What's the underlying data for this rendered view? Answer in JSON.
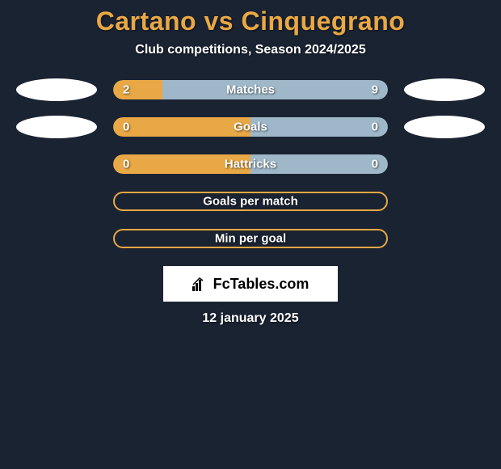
{
  "title": "Cartano vs Cinquegrano",
  "subtitle": "Club competitions, Season 2024/2025",
  "rows": [
    {
      "label": "Matches",
      "left_val": "2",
      "right_val": "9",
      "left_pct": 18,
      "right_pct": 82,
      "show_avatars": true,
      "empty": false
    },
    {
      "label": "Goals",
      "left_val": "0",
      "right_val": "0",
      "left_pct": 50,
      "right_pct": 50,
      "show_avatars": true,
      "empty": false
    },
    {
      "label": "Hattricks",
      "left_val": "0",
      "right_val": "0",
      "left_pct": 50,
      "right_pct": 50,
      "show_avatars": false,
      "empty": false
    },
    {
      "label": "Goals per match",
      "left_val": "",
      "right_val": "",
      "left_pct": 0,
      "right_pct": 0,
      "show_avatars": false,
      "empty": true
    },
    {
      "label": "Min per goal",
      "left_val": "",
      "right_val": "",
      "left_pct": 0,
      "right_pct": 0,
      "show_avatars": false,
      "empty": true
    }
  ],
  "logo": "FcTables.com",
  "date": "12 january 2025",
  "colors": {
    "background": "#1a2332",
    "accent": "#e8a845",
    "right_bar": "#9fb8c9",
    "text": "#ffffff"
  }
}
